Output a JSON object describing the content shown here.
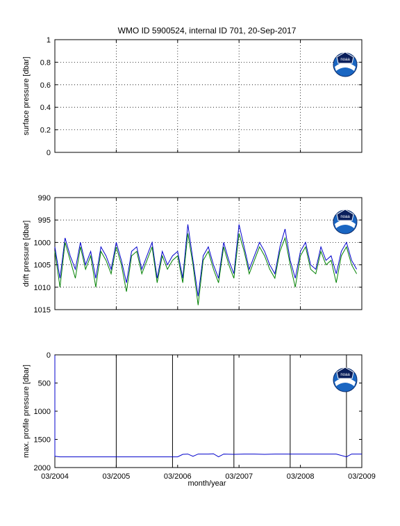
{
  "title": "WMO ID 5900524, internal ID 701, 20-Sep-2017",
  "xlabel": "month/year",
  "x_tick_labels": [
    "03/2004",
    "03/2005",
    "03/2006",
    "03/2007",
    "03/2008",
    "03/2009"
  ],
  "logo_text": "noaa",
  "colors": {
    "series_blue": "#0000cc",
    "series_green": "#008000",
    "axis": "#000000"
  },
  "chart_data": [
    {
      "type": "line",
      "title": "",
      "ylabel": "surface pressure [dbar]",
      "ylim": [
        0,
        1
      ],
      "y_ticks": [
        "0",
        "0.2",
        "0.4",
        "0.6",
        "0.8",
        "1"
      ],
      "xlim": [
        "2004-03",
        "2009-03"
      ],
      "grid": true,
      "series": []
    },
    {
      "type": "line",
      "ylabel": "drift pressure [dbar]",
      "ylim": [
        990,
        1015
      ],
      "y_reversed": true,
      "y_ticks": [
        "990",
        "995",
        "1000",
        "1005",
        "1010",
        "1015"
      ],
      "xlim": [
        "2004-03",
        "2009-03"
      ],
      "grid": true,
      "series": [
        {
          "color": "#0000cc",
          "x": [
            "2004-03",
            "2004-04",
            "2004-05",
            "2004-06",
            "2004-07",
            "2004-08",
            "2004-09",
            "2004-10",
            "2004-11",
            "2004-12",
            "2005-01",
            "2005-02",
            "2005-03",
            "2005-04",
            "2005-05",
            "2005-06",
            "2005-07",
            "2005-08",
            "2005-09",
            "2005-10",
            "2005-11",
            "2005-12",
            "2006-01",
            "2006-02",
            "2006-03",
            "2006-04",
            "2006-05",
            "2006-06",
            "2006-07",
            "2006-08",
            "2006-09",
            "2006-10",
            "2006-11",
            "2006-12",
            "2007-01",
            "2007-02",
            "2007-03",
            "2007-04",
            "2007-05",
            "2007-06",
            "2007-07",
            "2007-08",
            "2007-09",
            "2007-10",
            "2007-11",
            "2007-12",
            "2008-01",
            "2008-02",
            "2008-03",
            "2008-04",
            "2008-05",
            "2008-06",
            "2008-07",
            "2008-08",
            "2008-09",
            "2008-10",
            "2008-11",
            "2008-12",
            "2009-01",
            "2009-02"
          ],
          "y": [
            1001,
            1008,
            999,
            1003,
            1006,
            1000,
            1005,
            1002,
            1008,
            1001,
            1003,
            1006,
            1000,
            1004,
            1009,
            1002,
            1001,
            1006,
            1003,
            1000,
            1008,
            1002,
            1005,
            1003,
            1002,
            1008,
            996,
            1004,
            1012,
            1003,
            1001,
            1005,
            1008,
            1000,
            1004,
            1007,
            996,
            1001,
            1006,
            1003,
            1000,
            1002,
            1005,
            1007,
            1001,
            997,
            1004,
            1008,
            1002,
            1000,
            1005,
            1006,
            1001,
            1004,
            1003,
            1007,
            1002,
            1000,
            1004,
            1006
          ]
        },
        {
          "color": "#008000",
          "x": [
            "2004-03",
            "2004-04",
            "2004-05",
            "2004-06",
            "2004-07",
            "2004-08",
            "2004-09",
            "2004-10",
            "2004-11",
            "2004-12",
            "2005-01",
            "2005-02",
            "2005-03",
            "2005-04",
            "2005-05",
            "2005-06",
            "2005-07",
            "2005-08",
            "2005-09",
            "2005-10",
            "2005-11",
            "2005-12",
            "2006-01",
            "2006-02",
            "2006-03",
            "2006-04",
            "2006-05",
            "2006-06",
            "2006-07",
            "2006-08",
            "2006-09",
            "2006-10",
            "2006-11",
            "2006-12",
            "2007-01",
            "2007-02",
            "2007-03",
            "2007-04",
            "2007-05",
            "2007-06",
            "2007-07",
            "2007-08",
            "2007-09",
            "2007-10",
            "2007-11",
            "2007-12",
            "2008-01",
            "2008-02",
            "2008-03",
            "2008-04",
            "2008-05",
            "2008-06",
            "2008-07",
            "2008-08",
            "2008-09",
            "2008-10",
            "2008-11",
            "2008-12",
            "2009-01",
            "2009-02"
          ],
          "y": [
            1002,
            1010,
            1000,
            1004,
            1008,
            1001,
            1006,
            1003,
            1010,
            1002,
            1004,
            1007,
            1001,
            1005,
            1011,
            1003,
            1002,
            1007,
            1004,
            1001,
            1009,
            1003,
            1006,
            1004,
            1003,
            1009,
            998,
            1005,
            1014,
            1004,
            1002,
            1006,
            1009,
            1001,
            1005,
            1008,
            998,
            1002,
            1007,
            1004,
            1001,
            1003,
            1006,
            1008,
            1002,
            999,
            1005,
            1010,
            1003,
            1001,
            1006,
            1007,
            1002,
            1005,
            1004,
            1009,
            1003,
            1001,
            1005,
            1007
          ]
        }
      ]
    },
    {
      "type": "line",
      "ylabel": "max. profile pressure [dbar]",
      "ylim": [
        0,
        2000
      ],
      "y_reversed": true,
      "y_ticks": [
        "0",
        "500",
        "1000",
        "1500",
        "2000"
      ],
      "xlim": [
        "2004-03",
        "2009-03"
      ],
      "grid": false,
      "vertical_lines_x": [
        "2005-03",
        "2006-02",
        "2007-02",
        "2008-01",
        "2008-12"
      ],
      "series": [
        {
          "color": "#0000cc",
          "x": [
            "2004-03",
            "2004-03",
            "2004-04",
            "2006-03",
            "2006-04",
            "2006-05",
            "2006-06",
            "2006-07",
            "2006-09",
            "2006-10",
            "2006-11",
            "2006-12",
            "2007-02",
            "2007-04",
            "2007-06",
            "2007-08",
            "2007-10",
            "2007-12",
            "2008-02",
            "2008-04",
            "2008-06",
            "2008-08",
            "2008-10",
            "2008-12",
            "2009-01",
            "2009-02",
            "2009-03"
          ],
          "y": [
            10,
            1800,
            1810,
            1810,
            1765,
            1760,
            1800,
            1760,
            1760,
            1755,
            1810,
            1760,
            1765,
            1760,
            1760,
            1765,
            1760,
            1760,
            1760,
            1760,
            1760,
            1760,
            1760,
            1810,
            1760,
            1760,
            1760
          ]
        }
      ]
    }
  ]
}
